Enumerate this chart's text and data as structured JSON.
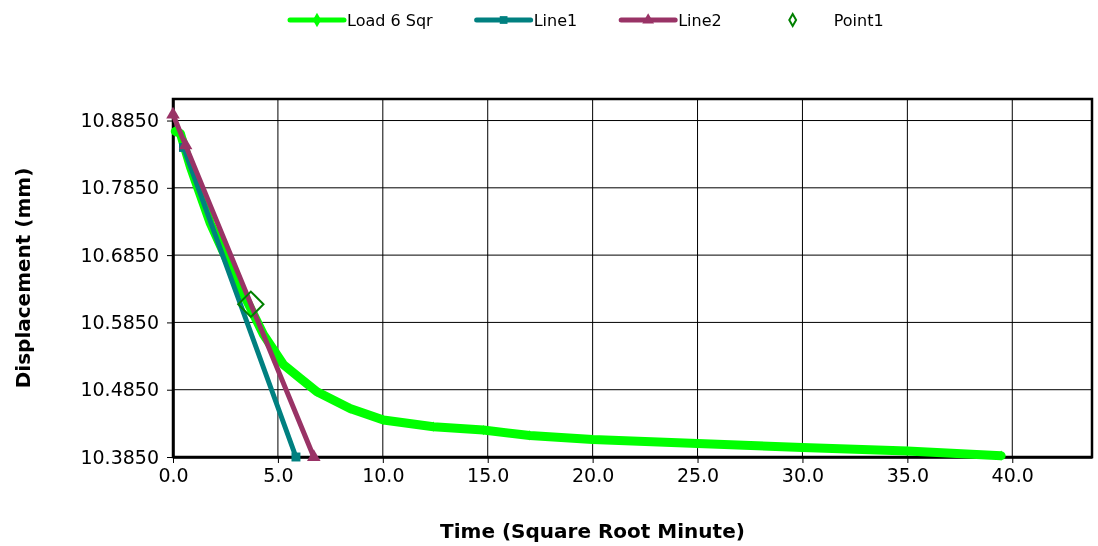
{
  "chart_data": {
    "type": "line",
    "xlabel": "Time (Square Root Minute)",
    "ylabel": "Displacement (mm)",
    "xlim": [
      0,
      43.8
    ],
    "ylim": [
      10.385,
      10.917
    ],
    "xticks": [
      {
        "value": 0,
        "label": "0.0"
      },
      {
        "value": 5,
        "label": "5.0"
      },
      {
        "value": 10,
        "label": "10.0"
      },
      {
        "value": 15,
        "label": "15.0"
      },
      {
        "value": 20,
        "label": "20.0"
      },
      {
        "value": 25,
        "label": "25.0"
      },
      {
        "value": 30,
        "label": "30.0"
      },
      {
        "value": 35,
        "label": "35.0"
      },
      {
        "value": 40,
        "label": "40.0"
      }
    ],
    "yticks": [
      {
        "value": 10.385,
        "label": "10.3850"
      },
      {
        "value": 10.485,
        "label": "10.4850"
      },
      {
        "value": 10.585,
        "label": "10.5850"
      },
      {
        "value": 10.685,
        "label": "10.6850"
      },
      {
        "value": 10.785,
        "label": "10.7850"
      },
      {
        "value": 10.885,
        "label": "10.8850"
      }
    ],
    "grid": true,
    "legend": "top",
    "series": [
      {
        "name": "Load 6 Sqr",
        "marker": "diamond",
        "color": "#00ff00",
        "x": [
          0.11,
          0.35,
          0.83,
          1.78,
          2.73,
          3.68,
          4.31,
          5.27,
          6.06,
          6.86,
          8.44,
          10.03,
          12.41,
          14.79,
          17.0,
          20.0,
          25.0,
          30.0,
          35.0,
          39.47
        ],
        "values": [
          10.869,
          10.866,
          10.816,
          10.732,
          10.667,
          10.607,
          10.567,
          10.522,
          10.502,
          10.482,
          10.457,
          10.44,
          10.43,
          10.425,
          10.417,
          10.411,
          10.405,
          10.399,
          10.394,
          10.387
        ]
      },
      {
        "name": "Line1",
        "marker": "square",
        "color": "#008080",
        "x": [
          0.5,
          5.86
        ],
        "values": [
          10.845,
          10.385
        ]
      },
      {
        "name": "Line2",
        "marker": "triangle",
        "color": "#993366",
        "x": [
          0,
          0.6,
          6.71
        ],
        "values": [
          10.894,
          10.848,
          10.385
        ]
      },
      {
        "name": "Point1",
        "type": "scatter",
        "marker": "diamond",
        "color": "#008000",
        "x": [
          3.71
        ],
        "values": [
          10.612
        ]
      }
    ]
  }
}
